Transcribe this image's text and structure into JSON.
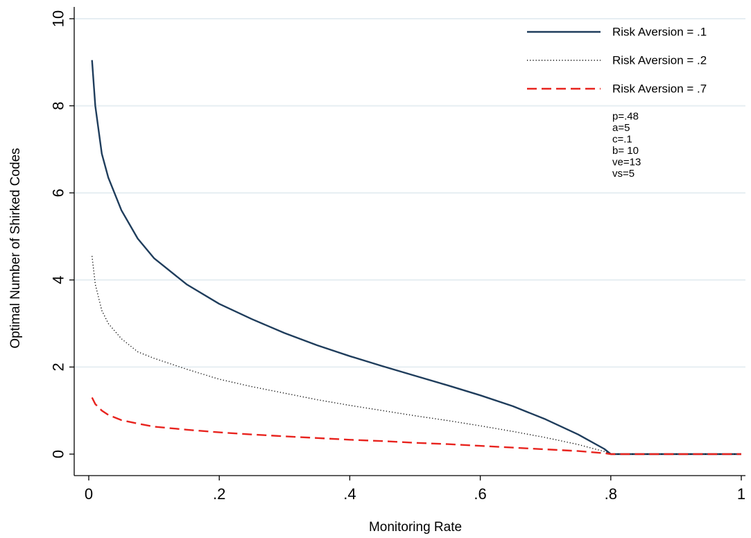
{
  "chart_data": {
    "type": "line",
    "xlabel": "Monitoring Rate",
    "ylabel": "Optimal Number of Shirked Codes",
    "xlim": [
      0,
      1
    ],
    "ylim": [
      0,
      10
    ],
    "x_ticks": [
      {
        "value": 0,
        "label": "0"
      },
      {
        "value": 0.2,
        "label": ".2"
      },
      {
        "value": 0.4,
        "label": ".4"
      },
      {
        "value": 0.6,
        "label": ".6"
      },
      {
        "value": 0.8,
        "label": ".8"
      },
      {
        "value": 1,
        "label": "1"
      }
    ],
    "y_ticks": [
      {
        "value": 0,
        "label": "0"
      },
      {
        "value": 2,
        "label": "2"
      },
      {
        "value": 4,
        "label": "4"
      },
      {
        "value": 6,
        "label": "6"
      },
      {
        "value": 8,
        "label": "8"
      },
      {
        "value": 10,
        "label": "10"
      }
    ],
    "grid": "horizontal",
    "legend_position": "top-right",
    "series": [
      {
        "name": "Risk Aversion = .1",
        "color": "#1f3d5c",
        "style": "solid",
        "x": [
          0.005,
          0.01,
          0.02,
          0.03,
          0.05,
          0.075,
          0.1,
          0.15,
          0.2,
          0.25,
          0.3,
          0.35,
          0.4,
          0.45,
          0.5,
          0.55,
          0.6,
          0.65,
          0.7,
          0.75,
          0.79,
          0.8,
          0.85,
          0.9,
          0.95,
          1.0
        ],
        "y": [
          9.05,
          8.0,
          6.9,
          6.35,
          5.6,
          4.95,
          4.5,
          3.9,
          3.45,
          3.1,
          2.78,
          2.5,
          2.25,
          2.02,
          1.8,
          1.58,
          1.35,
          1.1,
          0.8,
          0.45,
          0.12,
          0.0,
          0.0,
          0.0,
          0.0,
          0.0
        ]
      },
      {
        "name": "Risk Aversion = .2",
        "color": "#000000",
        "style": "dotted",
        "x": [
          0.005,
          0.01,
          0.02,
          0.03,
          0.05,
          0.075,
          0.1,
          0.15,
          0.2,
          0.25,
          0.3,
          0.35,
          0.4,
          0.45,
          0.5,
          0.55,
          0.6,
          0.65,
          0.7,
          0.75,
          0.79,
          0.8,
          0.85,
          0.9,
          0.95,
          1.0
        ],
        "y": [
          4.55,
          3.9,
          3.3,
          3.0,
          2.65,
          2.35,
          2.2,
          1.95,
          1.72,
          1.55,
          1.4,
          1.25,
          1.12,
          1.0,
          0.88,
          0.77,
          0.65,
          0.52,
          0.38,
          0.22,
          0.06,
          0.0,
          0.0,
          0.0,
          0.0,
          0.0
        ]
      },
      {
        "name": "Risk Aversion = .7",
        "color": "#e8231e",
        "style": "dashed",
        "x": [
          0.005,
          0.01,
          0.02,
          0.03,
          0.05,
          0.075,
          0.1,
          0.15,
          0.2,
          0.25,
          0.3,
          0.35,
          0.4,
          0.45,
          0.5,
          0.55,
          0.6,
          0.65,
          0.7,
          0.75,
          0.79,
          0.8,
          0.85,
          0.9,
          0.95,
          1.0
        ],
        "y": [
          1.3,
          1.15,
          1.0,
          0.9,
          0.78,
          0.7,
          0.63,
          0.56,
          0.5,
          0.45,
          0.41,
          0.37,
          0.33,
          0.3,
          0.26,
          0.23,
          0.19,
          0.15,
          0.11,
          0.07,
          0.02,
          0.0,
          0.0,
          0.0,
          0.0,
          0.0
        ]
      }
    ],
    "annotations": [
      "p=.48",
      "a=5",
      "c=.1",
      "b= 10",
      "ve=13",
      "vs=5"
    ]
  }
}
